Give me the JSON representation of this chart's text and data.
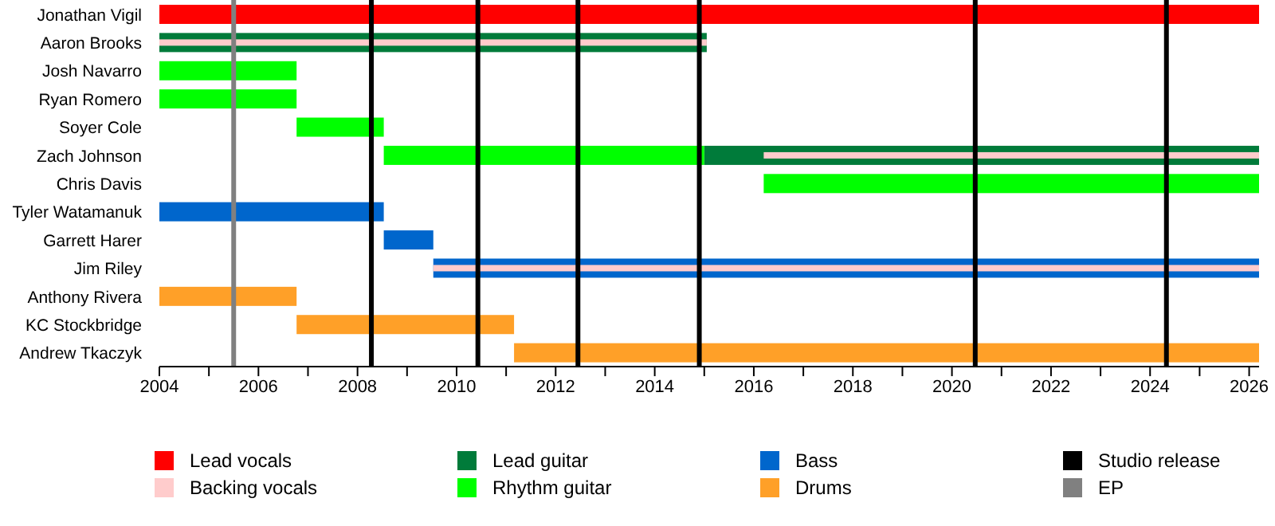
{
  "chart_data": {
    "type": "bar",
    "orientation": "horizontal",
    "categories": [
      "Jonathan Vigil",
      "Aaron Brooks",
      "Josh Navarro",
      "Ryan Romero",
      "Soyer Cole",
      "Zach Johnson",
      "Chris Davis",
      "Tyler Watamanuk",
      "Garrett Harer",
      "Jim Riley",
      "Anthony Rivera",
      "KC Stockbridge",
      "Andrew Tkaczyk"
    ],
    "series": [
      {
        "name": "Lead vocals",
        "color": "#ff0000",
        "base": [
          2004,
          null,
          null,
          null,
          null,
          null,
          null,
          null,
          null,
          null,
          null,
          null,
          null
        ],
        "values": [
          22.2,
          null,
          null,
          null,
          null,
          null,
          null,
          null,
          null,
          null,
          null,
          null,
          null
        ]
      },
      {
        "name": "Lead guitar",
        "color": "#007b3a",
        "base": [
          null,
          2004,
          null,
          null,
          null,
          2015.0,
          null,
          null,
          null,
          null,
          null,
          null,
          null
        ],
        "values": [
          null,
          11.05,
          null,
          null,
          null,
          11.2,
          null,
          null,
          null,
          null,
          null,
          null,
          null
        ]
      },
      {
        "name": "Bass",
        "color": "#0066cc",
        "base": [
          null,
          null,
          null,
          null,
          null,
          null,
          null,
          2004,
          2008.53,
          2009.53,
          null,
          null,
          null
        ],
        "values": [
          null,
          null,
          null,
          null,
          null,
          null,
          null,
          4.53,
          1.0,
          16.67,
          null,
          null,
          null
        ]
      },
      {
        "name": "Drums",
        "color": "#ffa028",
        "base": [
          null,
          null,
          null,
          null,
          null,
          null,
          null,
          null,
          null,
          null,
          2004,
          2006.77,
          2011.16
        ],
        "values": [
          null,
          null,
          null,
          null,
          null,
          null,
          null,
          null,
          null,
          null,
          2.77,
          4.39,
          15.04
        ]
      },
      {
        "name": "Rhythm guitar",
        "color": "#00ff00",
        "base": [
          null,
          null,
          2004,
          2004,
          2006.77,
          2008.53,
          2016.2,
          null,
          null,
          null,
          null,
          null,
          null
        ],
        "values": [
          null,
          null,
          2.77,
          2.77,
          1.76,
          6.47,
          10.0,
          null,
          null,
          null,
          null,
          null,
          null
        ]
      },
      {
        "name": "Backing vocals",
        "color": "#ffcccc",
        "base": [
          null,
          2004,
          null,
          null,
          null,
          2016.2,
          null,
          null,
          null,
          2009.53,
          null,
          null,
          null
        ],
        "values": [
          null,
          11.05,
          null,
          null,
          null,
          10.0,
          null,
          null,
          null,
          16.67,
          null,
          null,
          null
        ]
      }
    ],
    "xlim": [
      2004,
      2026.2
    ],
    "xticks": [
      2004,
      {
        "value": 2005,
        "label": null
      },
      2006,
      {
        "value": 2007,
        "label": null
      },
      2008,
      {
        "value": 2009,
        "label": null
      },
      2010,
      {
        "value": 2011,
        "label": null
      },
      2012,
      {
        "value": 2013,
        "label": null
      },
      2014,
      {
        "value": 2015,
        "label": null
      },
      2016,
      {
        "value": 2017,
        "label": null
      },
      2018,
      {
        "value": 2019,
        "label": null
      },
      2020,
      {
        "value": 2021,
        "label": null
      },
      2022,
      {
        "value": 2023,
        "label": null
      },
      2024,
      {
        "value": 2025,
        "label": null
      },
      2026
    ],
    "ref_lines": [
      {
        "axis": "x",
        "value": 2005.5,
        "label": "EP",
        "color": "#808080"
      },
      {
        "axis": "x",
        "value": 2008.28,
        "label": "Studio release",
        "color": "#000000"
      },
      {
        "axis": "x",
        "value": 2010.43,
        "color": "#000000"
      },
      {
        "axis": "x",
        "value": 2012.45,
        "color": "#000000"
      },
      {
        "axis": "x",
        "value": 2014.9,
        "color": "#000000"
      },
      {
        "axis": "x",
        "value": 2020.47,
        "color": "#000000"
      },
      {
        "axis": "x",
        "value": 2024.33,
        "color": "#000000"
      }
    ],
    "grid": false,
    "legend": "bottom"
  }
}
